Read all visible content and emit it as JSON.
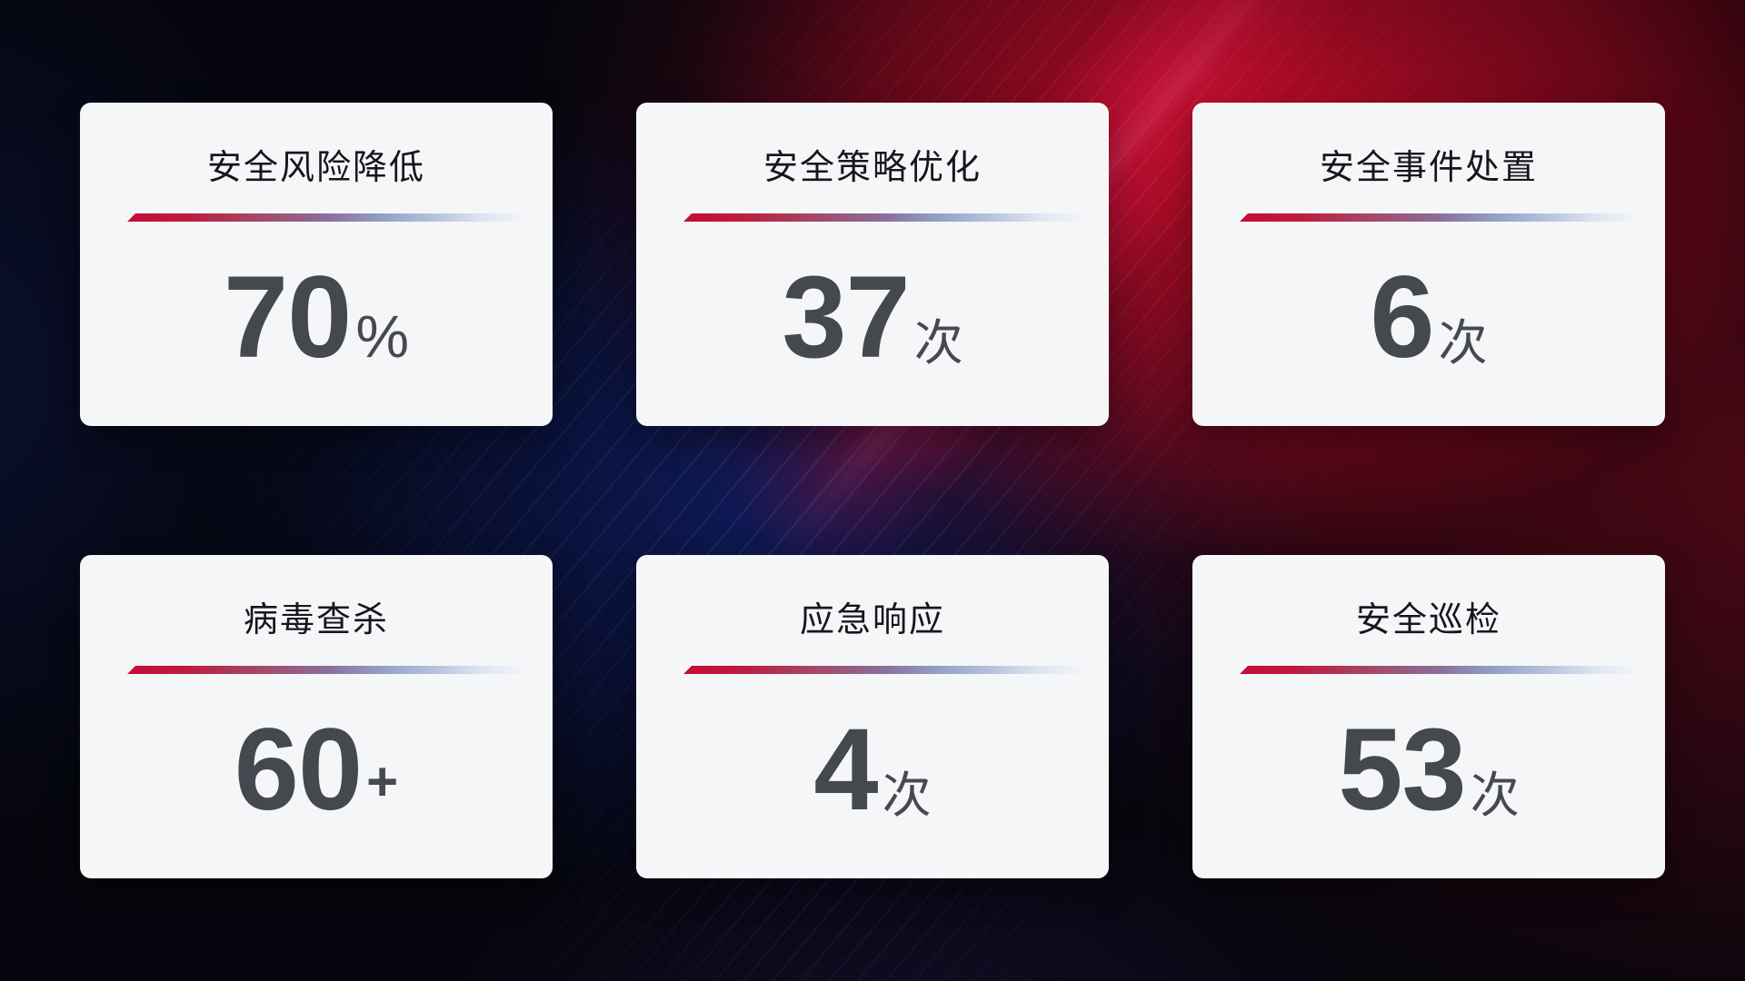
{
  "cards": [
    {
      "title": "安全风险降低",
      "value": "70",
      "unit": "%"
    },
    {
      "title": "安全策略优化",
      "value": "37",
      "unit": "次"
    },
    {
      "title": "安全事件处置",
      "value": "6",
      "unit": "次"
    },
    {
      "title": "病毒查杀",
      "value": "60",
      "unit": "+"
    },
    {
      "title": "应急响应",
      "value": "4",
      "unit": "次"
    },
    {
      "title": "安全巡检",
      "value": "53",
      "unit": "次"
    }
  ],
  "colors": {
    "card_background": "#f5f6f8",
    "title_text": "#15171c",
    "value_text": "#45484e",
    "divider_red": "#c40e36",
    "divider_purple": "#8a6f9b",
    "divider_light_blue": "#dde4f1",
    "background_base": "#05060d",
    "background_red_glow": "#c00c28",
    "background_blue_glow": "#132687"
  }
}
